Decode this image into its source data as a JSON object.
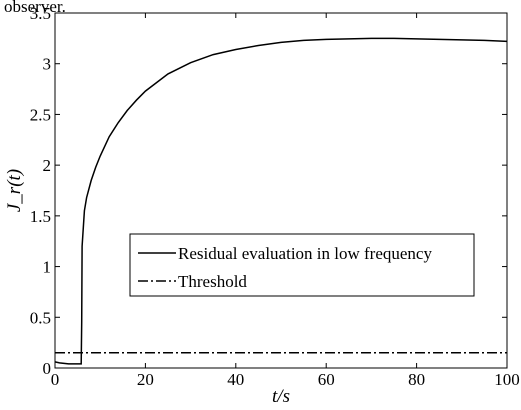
{
  "caption_fragment": "observer.",
  "chart_data": {
    "type": "line",
    "title": "",
    "xlabel": "t/s",
    "ylabel": "J_r(t)",
    "xlim": [
      0,
      100
    ],
    "ylim": [
      0,
      3.5
    ],
    "xticks": [
      0,
      20,
      40,
      60,
      80,
      100
    ],
    "yticks": [
      0,
      0.5,
      1,
      1.5,
      2,
      2.5,
      3,
      3.5
    ],
    "xtick_labels": [
      "0",
      "20",
      "40",
      "60",
      "80",
      "100"
    ],
    "ytick_labels": [
      "0",
      "0.5",
      "1",
      "1.5",
      "2",
      "2.5",
      "3",
      "3.5"
    ],
    "grid": false,
    "legend_position": "center-right",
    "series": [
      {
        "name": "Residual evaluation in low frequency",
        "style": "solid",
        "x": [
          0,
          1,
          3,
          5,
          5.8,
          5.9,
          6,
          6.5,
          7,
          8,
          9,
          10,
          12,
          14,
          16,
          18,
          20,
          25,
          30,
          35,
          40,
          45,
          50,
          55,
          60,
          65,
          70,
          75,
          80,
          85,
          90,
          95,
          100
        ],
        "y": [
          0.06,
          0.05,
          0.04,
          0.04,
          0.04,
          0.45,
          1.2,
          1.55,
          1.68,
          1.85,
          1.98,
          2.09,
          2.28,
          2.42,
          2.54,
          2.64,
          2.73,
          2.9,
          3.01,
          3.09,
          3.14,
          3.18,
          3.21,
          3.23,
          3.24,
          3.245,
          3.25,
          3.25,
          3.245,
          3.24,
          3.235,
          3.23,
          3.22
        ]
      },
      {
        "name": "Threshold",
        "style": "dash-dot",
        "x": [
          0,
          100
        ],
        "y": [
          0.15,
          0.15
        ]
      }
    ]
  }
}
